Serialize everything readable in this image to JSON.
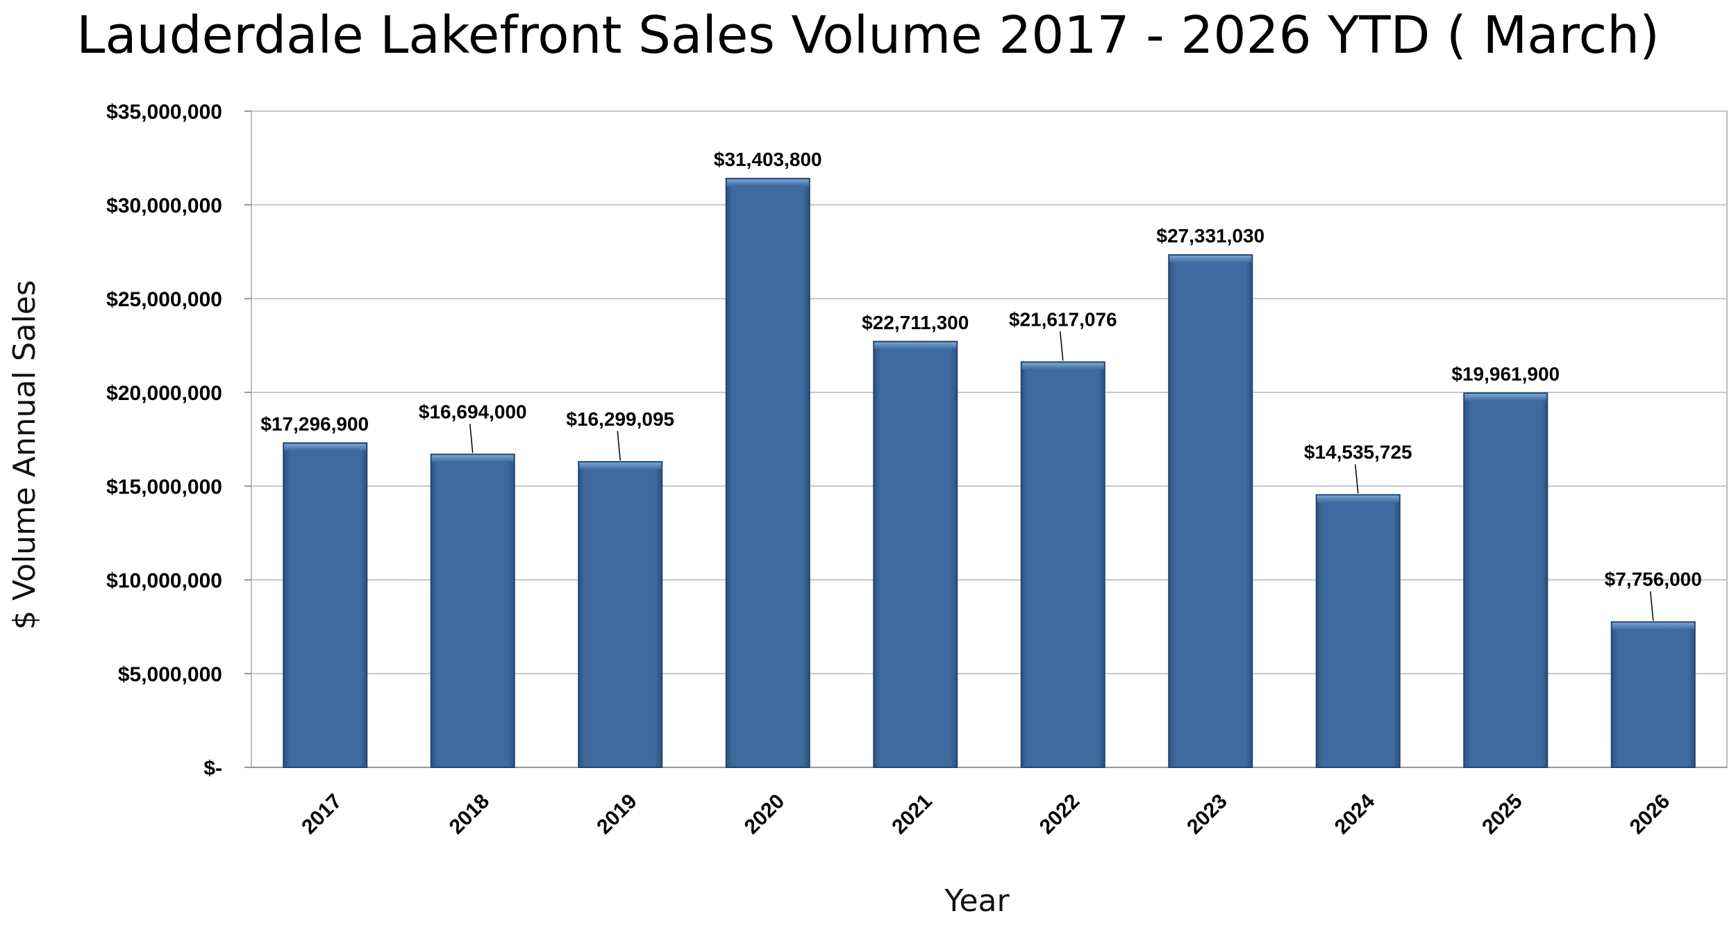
{
  "chart_data": {
    "type": "bar",
    "title": "Lauderdale Lakefront Sales Volume 2017 - 2026 YTD ( March)",
    "xlabel": "Year",
    "ylabel": "$ Volume Annual Sales",
    "categories": [
      "2017",
      "2018",
      "2019",
      "2020",
      "2021",
      "2022",
      "2023",
      "2024",
      "2025",
      "2026"
    ],
    "values": [
      17296900,
      16694000,
      16299095,
      31403800,
      22711300,
      21617076,
      27331030,
      14535725,
      19961900,
      7756000
    ],
    "data_labels": [
      "$17,296,900",
      "$16,694,000",
      "$16,299,095",
      "$31,403,800",
      "$22,711,300",
      "$21,617,076",
      "$27,331,030",
      "$14,535,725",
      "$19,961,900",
      "$7,756,000"
    ],
    "ylim": [
      0,
      35000000
    ],
    "yticks": [
      0,
      5000000,
      10000000,
      15000000,
      20000000,
      25000000,
      30000000,
      35000000
    ],
    "ytick_labels": [
      "$-",
      "$5,000,000",
      "$10,000,000",
      "$15,000,000",
      "$20,000,000",
      "$25,000,000",
      "$30,000,000",
      "$35,000,000"
    ],
    "grid": true,
    "legend": "none",
    "bar_color": "#3e6aa0"
  }
}
